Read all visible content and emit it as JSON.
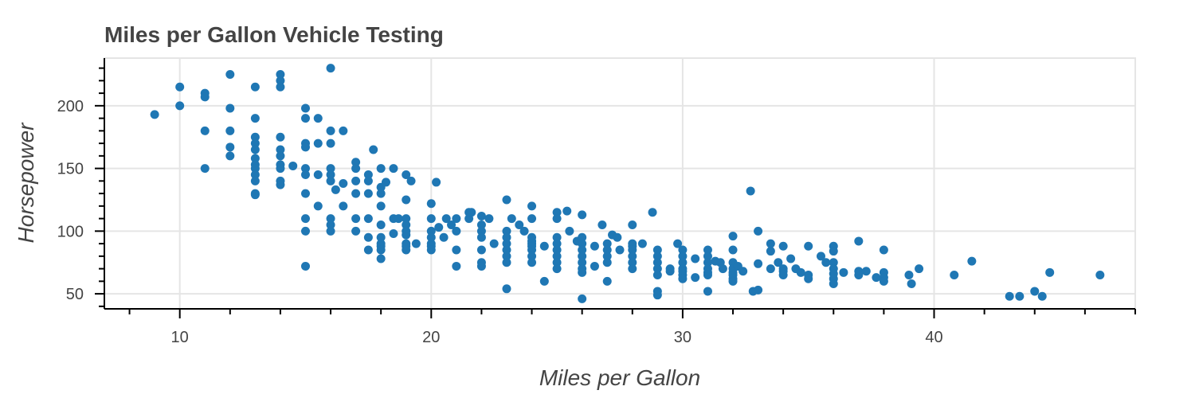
{
  "chart_data": {
    "type": "scatter",
    "title": "Miles per Gallon Vehicle Testing",
    "xlabel": "Miles per Gallon",
    "ylabel": "Horsepower",
    "xlim": [
      7,
      48
    ],
    "ylim": [
      38,
      238
    ],
    "x_ticks": [
      10,
      20,
      30,
      40
    ],
    "y_ticks": [
      50,
      100,
      150,
      200
    ],
    "grid": true,
    "marker_color": "#1f77b4",
    "points": [
      [
        9,
        193
      ],
      [
        10,
        215
      ],
      [
        10,
        200
      ],
      [
        11,
        210
      ],
      [
        11,
        207
      ],
      [
        11,
        180
      ],
      [
        11,
        150
      ],
      [
        12,
        225
      ],
      [
        12,
        198
      ],
      [
        12,
        180
      ],
      [
        12,
        167
      ],
      [
        12,
        160
      ],
      [
        13,
        215
      ],
      [
        13,
        190
      ],
      [
        13,
        175
      ],
      [
        13,
        170
      ],
      [
        13,
        165
      ],
      [
        13,
        158
      ],
      [
        13,
        153
      ],
      [
        13,
        150
      ],
      [
        13,
        145
      ],
      [
        13,
        140
      ],
      [
        13,
        130
      ],
      [
        13,
        129
      ],
      [
        14,
        225
      ],
      [
        14,
        220
      ],
      [
        14,
        215
      ],
      [
        14,
        175
      ],
      [
        14,
        165
      ],
      [
        14,
        160
      ],
      [
        14,
        153
      ],
      [
        14,
        150
      ],
      [
        14,
        140
      ],
      [
        14,
        137
      ],
      [
        14.5,
        152
      ],
      [
        15,
        198
      ],
      [
        15,
        190
      ],
      [
        15,
        170
      ],
      [
        15,
        167
      ],
      [
        15,
        150
      ],
      [
        15,
        145
      ],
      [
        15,
        130
      ],
      [
        15,
        110
      ],
      [
        15,
        100
      ],
      [
        15,
        72
      ],
      [
        15.5,
        190
      ],
      [
        15.5,
        170
      ],
      [
        15.5,
        145
      ],
      [
        15.5,
        120
      ],
      [
        16,
        230
      ],
      [
        16,
        180
      ],
      [
        16,
        170
      ],
      [
        16,
        150
      ],
      [
        16,
        145
      ],
      [
        16,
        140
      ],
      [
        16,
        110
      ],
      [
        16,
        105
      ],
      [
        16,
        100
      ],
      [
        16.2,
        133
      ],
      [
        16.5,
        180
      ],
      [
        16.5,
        138
      ],
      [
        16.5,
        120
      ],
      [
        17,
        155
      ],
      [
        17,
        150
      ],
      [
        17,
        140
      ],
      [
        17,
        130
      ],
      [
        17,
        110
      ],
      [
        17,
        100
      ],
      [
        17.5,
        145
      ],
      [
        17.5,
        140
      ],
      [
        17.5,
        130
      ],
      [
        17.5,
        110
      ],
      [
        17.5,
        95
      ],
      [
        17.5,
        85
      ],
      [
        17.7,
        165
      ],
      [
        18,
        150
      ],
      [
        18,
        135
      ],
      [
        18,
        130
      ],
      [
        18,
        120
      ],
      [
        18,
        105
      ],
      [
        18,
        95
      ],
      [
        18,
        90
      ],
      [
        18,
        88
      ],
      [
        18,
        85
      ],
      [
        18,
        78
      ],
      [
        18.2,
        139
      ],
      [
        18.5,
        150
      ],
      [
        18.5,
        110
      ],
      [
        18.5,
        98
      ],
      [
        18.7,
        110
      ],
      [
        19,
        145
      ],
      [
        19,
        125
      ],
      [
        19,
        110
      ],
      [
        19,
        105
      ],
      [
        19,
        100
      ],
      [
        19,
        97
      ],
      [
        19,
        90
      ],
      [
        19,
        88
      ],
      [
        19,
        85
      ],
      [
        19.2,
        140
      ],
      [
        19.4,
        90
      ],
      [
        20,
        122
      ],
      [
        20,
        110
      ],
      [
        20,
        100
      ],
      [
        20,
        95
      ],
      [
        20,
        90
      ],
      [
        20,
        88
      ],
      [
        20,
        85
      ],
      [
        20.2,
        139
      ],
      [
        20.3,
        103
      ],
      [
        20.5,
        95
      ],
      [
        20.6,
        110
      ],
      [
        20.8,
        105
      ],
      [
        21,
        110
      ],
      [
        21,
        100
      ],
      [
        21,
        85
      ],
      [
        21,
        72
      ],
      [
        21.5,
        115
      ],
      [
        21.5,
        110
      ],
      [
        21.6,
        115
      ],
      [
        22,
        112
      ],
      [
        22,
        105
      ],
      [
        22,
        100
      ],
      [
        22,
        95
      ],
      [
        22,
        85
      ],
      [
        22,
        75
      ],
      [
        22,
        72
      ],
      [
        22.3,
        110
      ],
      [
        22.5,
        90
      ],
      [
        23,
        125
      ],
      [
        23,
        100
      ],
      [
        23,
        95
      ],
      [
        23,
        90
      ],
      [
        23,
        85
      ],
      [
        23,
        80
      ],
      [
        23,
        75
      ],
      [
        23,
        54
      ],
      [
        23.2,
        110
      ],
      [
        23.5,
        105
      ],
      [
        23.7,
        100
      ],
      [
        24,
        120
      ],
      [
        24,
        110
      ],
      [
        24,
        95
      ],
      [
        24,
        92
      ],
      [
        24,
        90
      ],
      [
        24,
        88
      ],
      [
        24,
        85
      ],
      [
        24,
        80
      ],
      [
        24,
        75
      ],
      [
        24.5,
        88
      ],
      [
        24.5,
        60
      ],
      [
        25,
        115
      ],
      [
        25,
        110
      ],
      [
        25,
        95
      ],
      [
        25,
        90
      ],
      [
        25,
        85
      ],
      [
        25,
        80
      ],
      [
        25,
        75
      ],
      [
        25,
        70
      ],
      [
        25.4,
        116
      ],
      [
        25.5,
        100
      ],
      [
        25.8,
        92
      ],
      [
        26,
        113
      ],
      [
        26,
        95
      ],
      [
        26,
        90
      ],
      [
        26,
        85
      ],
      [
        26,
        80
      ],
      [
        26,
        75
      ],
      [
        26,
        70
      ],
      [
        26,
        67
      ],
      [
        26,
        46
      ],
      [
        26.5,
        88
      ],
      [
        26.5,
        72
      ],
      [
        26.8,
        105
      ],
      [
        27,
        90
      ],
      [
        27,
        85
      ],
      [
        27,
        80
      ],
      [
        27,
        75
      ],
      [
        27,
        60
      ],
      [
        27.2,
        97
      ],
      [
        27.4,
        95
      ],
      [
        27.5,
        85
      ],
      [
        28,
        105
      ],
      [
        28,
        90
      ],
      [
        28,
        88
      ],
      [
        28,
        85
      ],
      [
        28,
        80
      ],
      [
        28,
        75
      ],
      [
        28,
        70
      ],
      [
        28.4,
        90
      ],
      [
        28.8,
        115
      ],
      [
        29,
        85
      ],
      [
        29,
        80
      ],
      [
        29,
        75
      ],
      [
        29,
        70
      ],
      [
        29,
        65
      ],
      [
        29,
        52
      ],
      [
        29,
        49
      ],
      [
        29.5,
        70
      ],
      [
        29.5,
        68
      ],
      [
        29.8,
        90
      ],
      [
        30,
        85
      ],
      [
        30,
        80
      ],
      [
        30,
        75
      ],
      [
        30,
        70
      ],
      [
        30,
        68
      ],
      [
        30,
        65
      ],
      [
        30,
        62
      ],
      [
        30.5,
        78
      ],
      [
        30.5,
        63
      ],
      [
        31,
        85
      ],
      [
        31,
        80
      ],
      [
        31,
        75
      ],
      [
        31,
        70
      ],
      [
        31,
        67
      ],
      [
        31,
        65
      ],
      [
        31,
        52
      ],
      [
        31.3,
        76
      ],
      [
        31.5,
        75
      ],
      [
        31.6,
        70
      ],
      [
        32,
        96
      ],
      [
        32,
        85
      ],
      [
        32,
        75
      ],
      [
        32,
        70
      ],
      [
        32,
        67
      ],
      [
        32,
        65
      ],
      [
        32,
        62
      ],
      [
        32,
        60
      ],
      [
        32.2,
        72
      ],
      [
        32.4,
        68
      ],
      [
        32.7,
        132
      ],
      [
        32.8,
        52
      ],
      [
        33,
        100
      ],
      [
        33,
        74
      ],
      [
        33,
        53
      ],
      [
        33.5,
        90
      ],
      [
        33.5,
        84
      ],
      [
        33.5,
        70
      ],
      [
        33.8,
        75
      ],
      [
        34,
        88
      ],
      [
        34,
        70
      ],
      [
        34,
        68
      ],
      [
        34,
        65
      ],
      [
        34.3,
        78
      ],
      [
        34.5,
        70
      ],
      [
        34.7,
        67
      ],
      [
        35,
        88
      ],
      [
        35,
        65
      ],
      [
        35,
        62
      ],
      [
        35.5,
        80
      ],
      [
        35.7,
        75
      ],
      [
        36,
        88
      ],
      [
        36,
        84
      ],
      [
        36,
        75
      ],
      [
        36,
        70
      ],
      [
        36,
        66
      ],
      [
        36,
        62
      ],
      [
        36,
        58
      ],
      [
        36.4,
        67
      ],
      [
        37,
        92
      ],
      [
        37,
        68
      ],
      [
        37,
        65
      ],
      [
        37.3,
        68
      ],
      [
        37.7,
        63
      ],
      [
        38,
        85
      ],
      [
        38,
        67
      ],
      [
        38,
        63
      ],
      [
        38,
        60
      ],
      [
        39,
        65
      ],
      [
        39.1,
        58
      ],
      [
        39.4,
        70
      ],
      [
        40.8,
        65
      ],
      [
        41.5,
        76
      ],
      [
        43,
        48
      ],
      [
        43.4,
        48
      ],
      [
        44,
        52
      ],
      [
        44.3,
        48
      ],
      [
        44.6,
        67
      ],
      [
        46.6,
        65
      ]
    ]
  }
}
